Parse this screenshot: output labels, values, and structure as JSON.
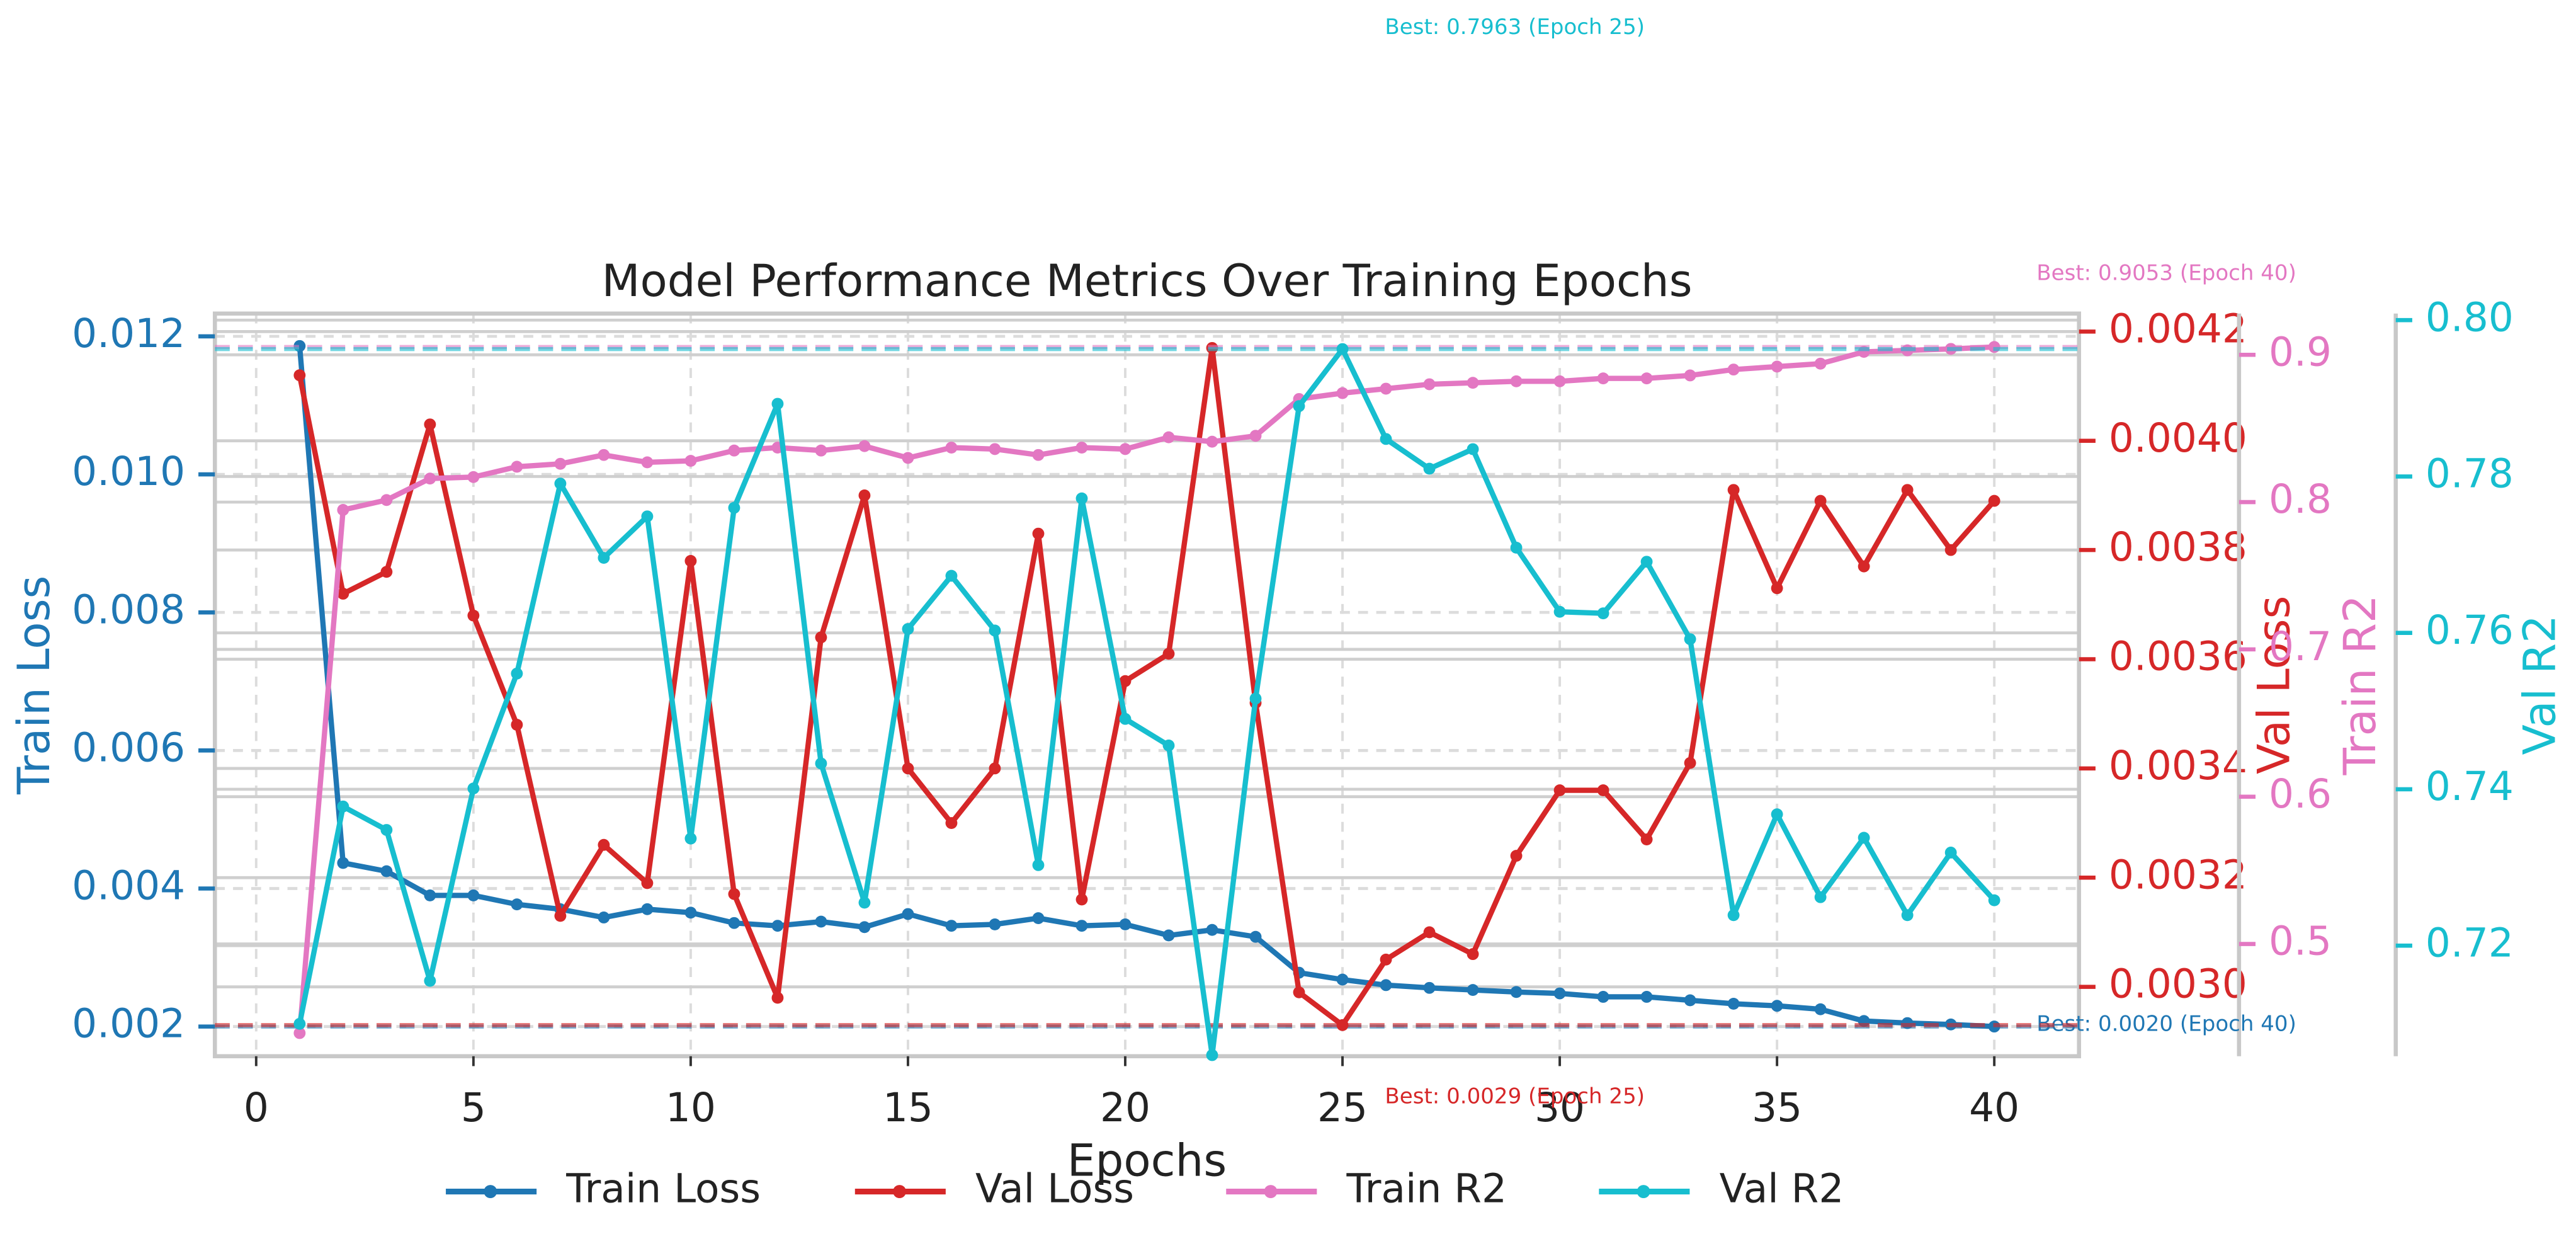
{
  "chart_data": {
    "type": "line",
    "title": "Model Performance Metrics Over Training Epochs",
    "x_label": "Epochs",
    "y_label": "Train Loss",
    "y2_label": "Val Loss",
    "y3_label": "Train R2",
    "y4_label": "Val R2",
    "grid": true,
    "legend": "lower center",
    "x": [
      1,
      2,
      3,
      4,
      5,
      6,
      7,
      8,
      9,
      10,
      11,
      12,
      13,
      14,
      15,
      16,
      17,
      18,
      19,
      20,
      21,
      22,
      23,
      24,
      25,
      26,
      27,
      28,
      29,
      30,
      31,
      32,
      33,
      34,
      35,
      36,
      37,
      38,
      39,
      40
    ],
    "xlim": [
      -0.95,
      41.95
    ],
    "xticks": [
      0,
      5,
      10,
      15,
      20,
      25,
      30,
      35,
      40
    ],
    "ylim": [
      0.00157,
      0.01233
    ],
    "yticks": [
      0.002,
      0.004,
      0.006,
      0.008,
      {
        "value": 0.01,
        "label": "0.010"
      },
      0.012
    ],
    "y2lim": [
      0.002873,
      0.004233
    ],
    "y2ticks": [
      {
        "value": 0.003,
        "label": "0.0030"
      },
      {
        "value": 0.0032,
        "label": "0.0032"
      },
      {
        "value": 0.0034,
        "label": "0.0034"
      },
      {
        "value": 0.0036,
        "label": "0.0036"
      },
      {
        "value": 0.0038,
        "label": "0.0038"
      },
      {
        "value": 0.004,
        "label": "0.0040"
      },
      {
        "value": 0.0042,
        "label": "0.0042"
      }
    ],
    "y3lim": [
      0.4238,
      0.928
    ],
    "y3ticks": [
      0.5,
      0.6,
      0.7,
      0.8,
      0.9
    ],
    "y4lim": [
      0.70586,
      0.80084
    ],
    "y4ticks": [
      0.72,
      0.74,
      0.76,
      0.78,
      {
        "value": 0.8,
        "label": "0.80"
      }
    ],
    "series": [
      {
        "name": "Train Loss",
        "color": "#1f77b4",
        "axis": "y",
        "best": "min",
        "annotation": "Best: 0.0020 (Epoch 40)",
        "values": [
          0.01186,
          0.00437,
          0.00425,
          0.0039,
          0.0039,
          0.00377,
          0.0037,
          0.00358,
          0.0037,
          0.00365,
          0.0035,
          0.00346,
          0.00352,
          0.00344,
          0.00363,
          0.00346,
          0.00348,
          0.00357,
          0.00346,
          0.00348,
          0.00332,
          0.0034,
          0.0033,
          0.00278,
          0.00268,
          0.0026,
          0.00256,
          0.00253,
          0.0025,
          0.00248,
          0.00243,
          0.00243,
          0.00238,
          0.00233,
          0.0023,
          0.00225,
          0.00208,
          0.00205,
          0.00203,
          0.002
        ]
      },
      {
        "name": "Val Loss",
        "color": "#d62728",
        "axis": "y2",
        "best": "min",
        "annotation": "Best: 0.0029 (Epoch 25)",
        "values": [
          0.00412,
          0.00372,
          0.00376,
          0.00403,
          0.00368,
          0.00348,
          0.00313,
          0.00326,
          0.00319,
          0.00378,
          0.00317,
          0.00298,
          0.00364,
          0.0039,
          0.0034,
          0.0033,
          0.0034,
          0.00383,
          0.00316,
          0.00356,
          0.00361,
          0.00417,
          0.00352,
          0.00299,
          0.00293,
          0.00305,
          0.0031,
          0.00306,
          0.00324,
          0.00336,
          0.00336,
          0.00327,
          0.00341,
          0.00391,
          0.00373,
          0.00389,
          0.00377,
          0.00391,
          0.0038,
          0.00389
        ]
      },
      {
        "name": "Train R2",
        "color": "#e377c2",
        "axis": "y3",
        "best": "max",
        "annotation": "Best: 0.9053 (Epoch 40)",
        "values": [
          0.4395,
          0.7947,
          0.8014,
          0.816,
          0.817,
          0.824,
          0.826,
          0.832,
          0.827,
          0.828,
          0.835,
          0.837,
          0.835,
          0.838,
          0.83,
          0.837,
          0.836,
          0.832,
          0.837,
          0.836,
          0.844,
          0.841,
          0.845,
          0.87,
          0.874,
          0.877,
          0.88,
          0.881,
          0.882,
          0.882,
          0.884,
          0.884,
          0.886,
          0.89,
          0.892,
          0.894,
          0.902,
          0.903,
          0.904,
          0.9053
        ]
      },
      {
        "name": "Val R2",
        "color": "#17becf",
        "axis": "y4",
        "best": "max",
        "annotation": "Best: 0.7963 (Epoch 25)",
        "values": [
          0.71,
          0.7378,
          0.7348,
          0.7155,
          0.7401,
          0.7548,
          0.7791,
          0.7696,
          0.7749,
          0.7337,
          0.776,
          0.7893,
          0.7433,
          0.7255,
          0.7605,
          0.7673,
          0.7603,
          0.7303,
          0.7772,
          0.749,
          0.7456,
          0.706,
          0.7516,
          0.789,
          0.7963,
          0.7848,
          0.781,
          0.7835,
          0.7709,
          0.7627,
          0.7625,
          0.7691,
          0.7592,
          0.7239,
          0.7368,
          0.7262,
          0.7338,
          0.7239,
          0.7319,
          0.7258
        ]
      }
    ]
  }
}
